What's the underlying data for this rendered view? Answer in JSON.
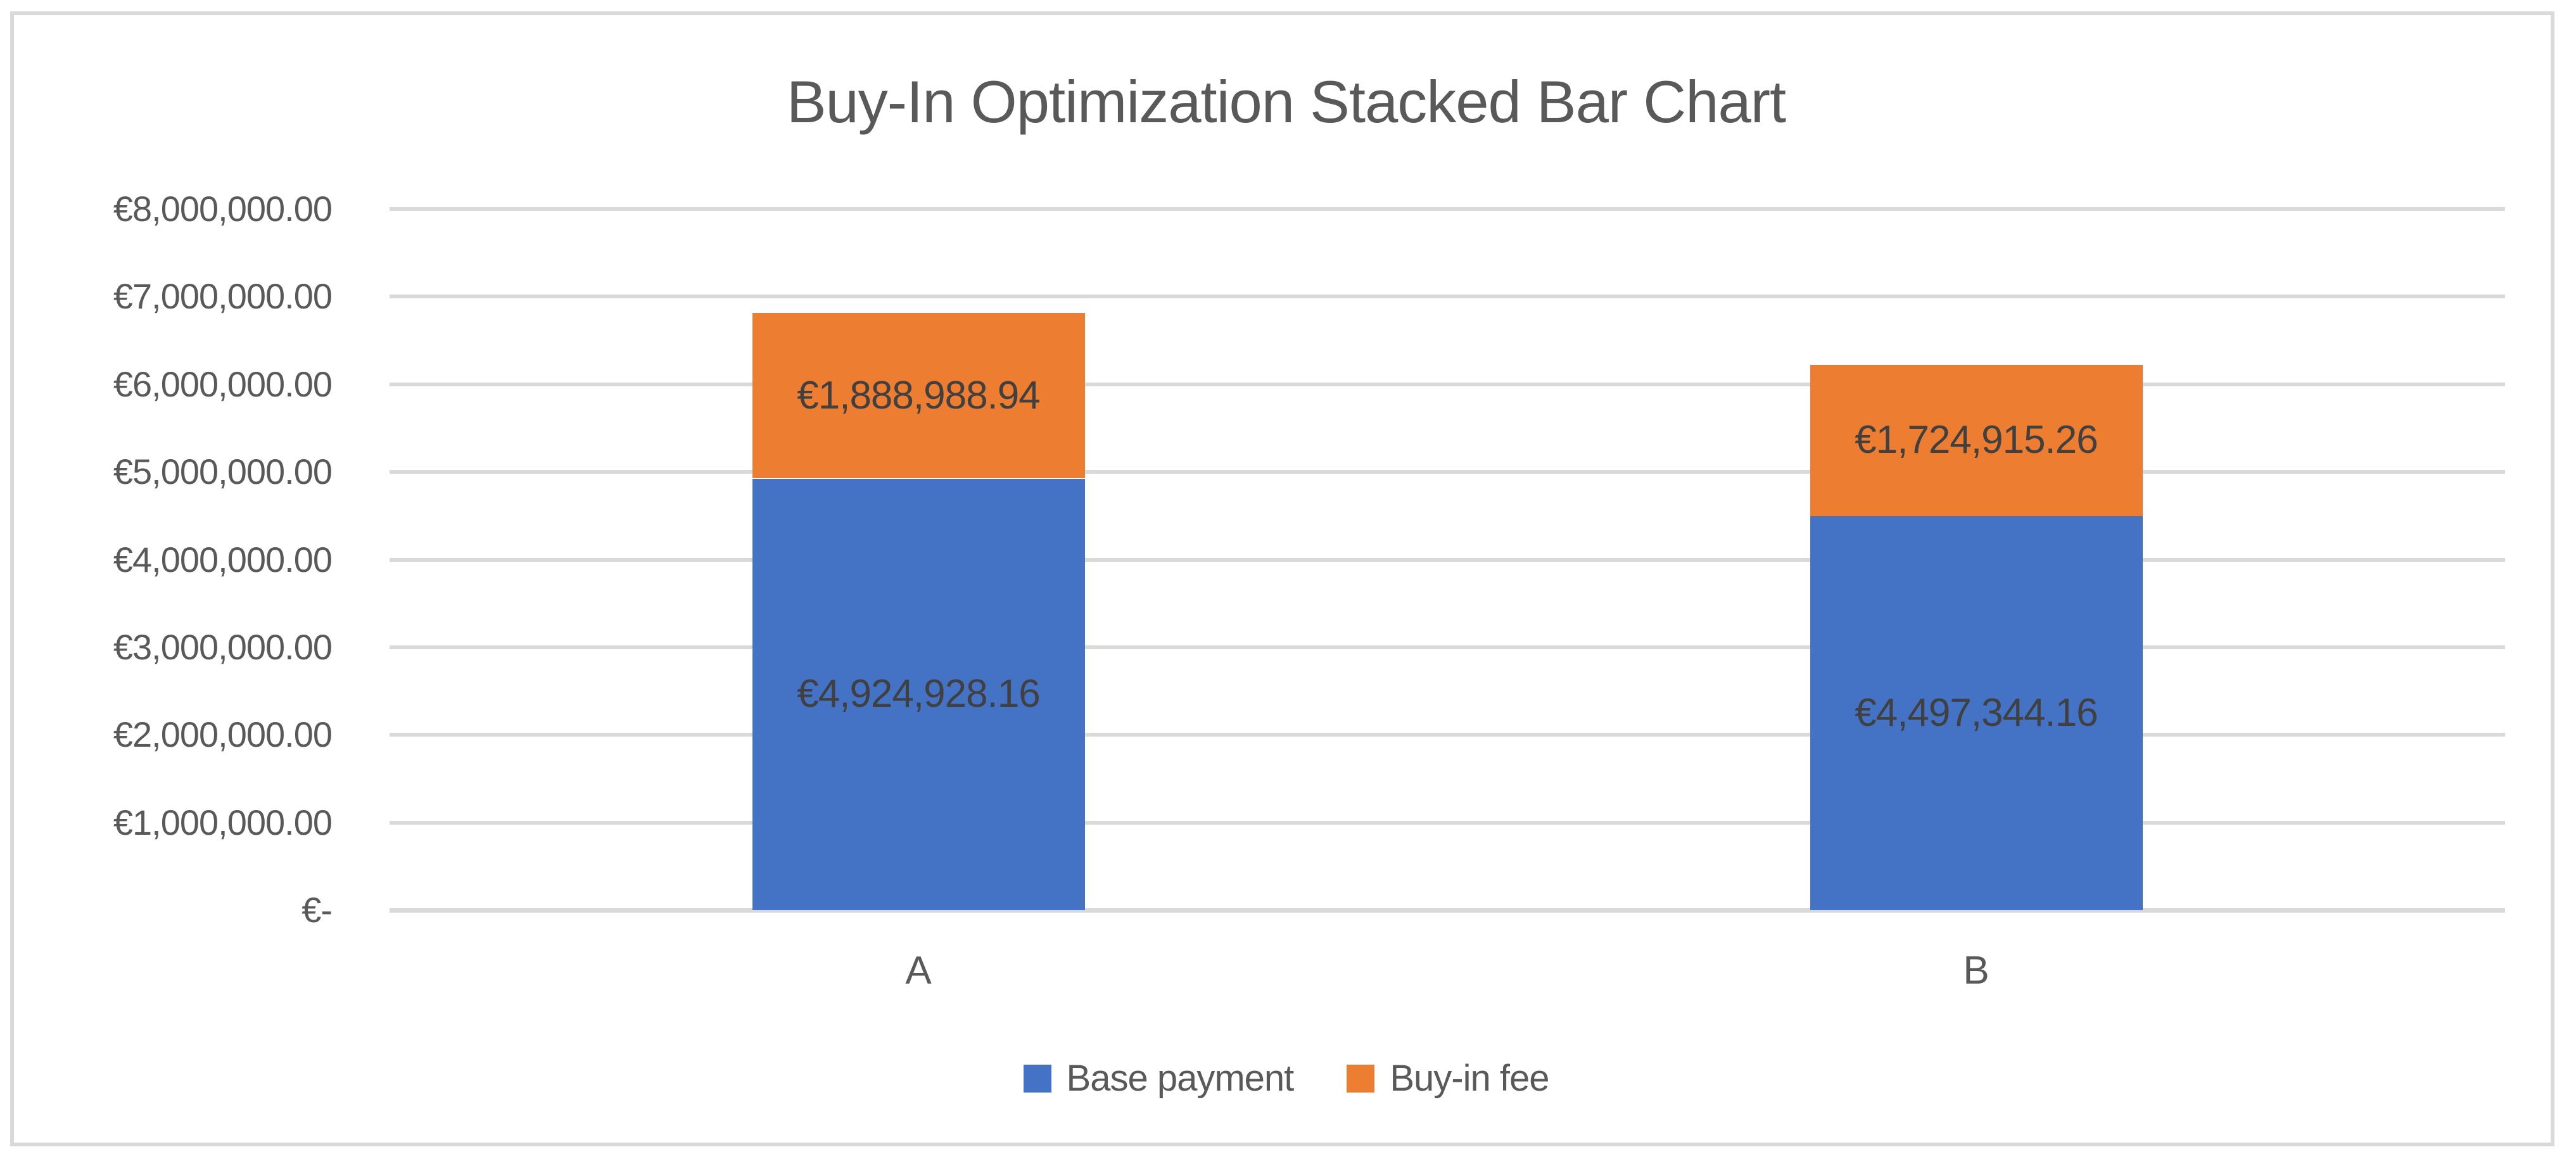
{
  "chart_data": {
    "type": "bar",
    "stacked": true,
    "title": "Buy-In Optimization Stacked Bar Chart",
    "categories": [
      "A",
      "B"
    ],
    "series": [
      {
        "name": "Base payment",
        "color": "#4472C4",
        "values": [
          4924928.16,
          4497344.16
        ],
        "labels": [
          "€4,924,928.16",
          "€4,497,344.16"
        ]
      },
      {
        "name": "Buy-in fee",
        "color": "#ED7D31",
        "values": [
          1888988.94,
          1724915.26
        ],
        "labels": [
          "€1,888,988.94",
          "€1,724,915.26"
        ]
      }
    ],
    "totals": [
      6813917.1,
      6222259.42
    ],
    "y_axis": {
      "min": 0,
      "max": 8000000,
      "step": 1000000,
      "tick_labels_top_to_bottom": [
        "€8,000,000.00",
        "€7,000,000.00",
        "€6,000,000.00",
        "€5,000,000.00",
        "€4,000,000.00",
        "€3,000,000.00",
        "€2,000,000.00",
        "€1,000,000.00",
        "€-"
      ]
    },
    "legend": {
      "position": "bottom",
      "entries": [
        "Base payment",
        "Buy-in fee"
      ]
    },
    "grid": true
  },
  "style": {
    "grid_color": "#D9D9D9",
    "frame_border_color": "#D9D9D9",
    "title_color": "#595959",
    "axis_text_color": "#595959",
    "data_label_color": "#404040",
    "legend_text_color": "#595959",
    "series_colors": {
      "Base payment": "#4472C4",
      "Buy-in fee": "#ED7D31"
    }
  }
}
